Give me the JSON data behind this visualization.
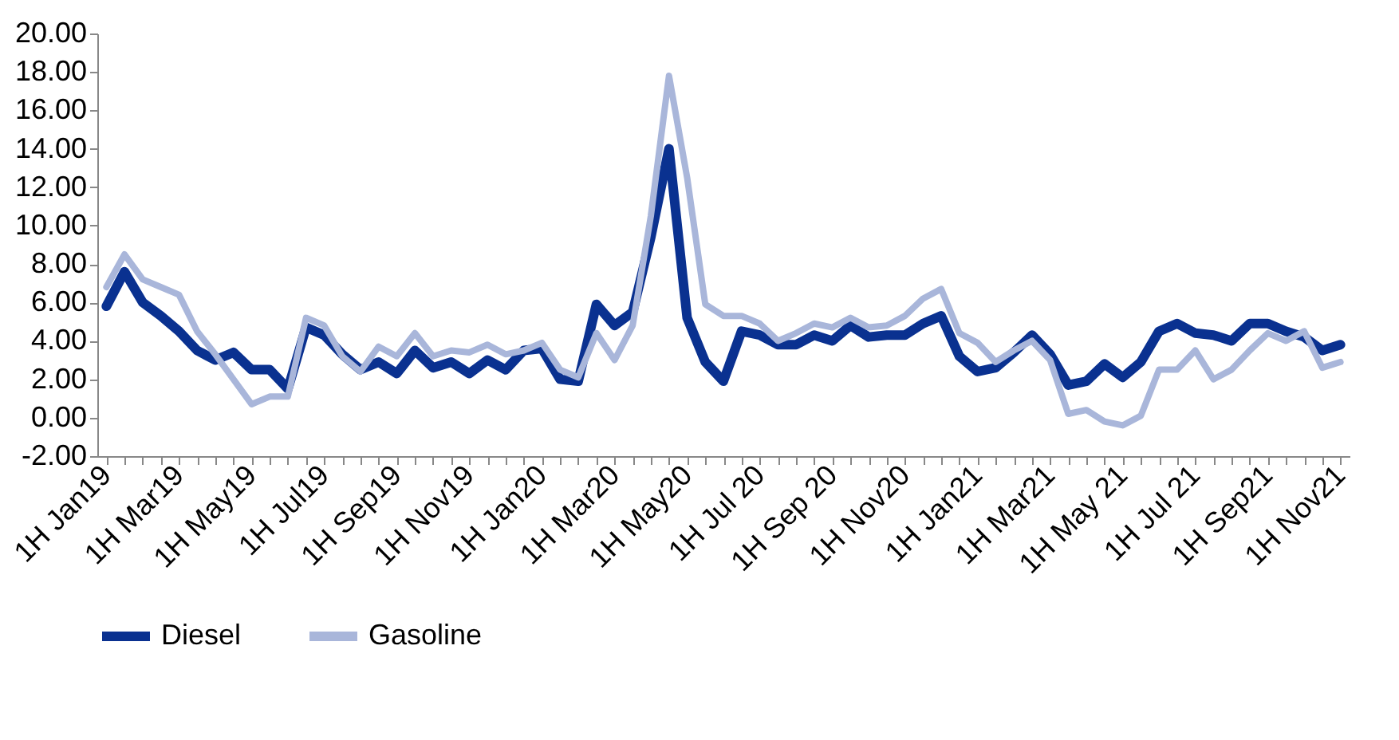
{
  "chart_data": {
    "type": "line",
    "categories": [
      "1H Jan19",
      null,
      null,
      null,
      "1H Mar19",
      null,
      null,
      null,
      "1H May19",
      null,
      null,
      null,
      "1H Jul19",
      null,
      null,
      null,
      "1H Sep19",
      null,
      null,
      null,
      "1H Nov19",
      null,
      null,
      null,
      "1H Jan20",
      null,
      null,
      null,
      "1H Mar20",
      null,
      null,
      null,
      "1H May20",
      null,
      null,
      null,
      "1H Jul 20",
      null,
      null,
      null,
      "1H Sep 20",
      null,
      null,
      null,
      "1H Nov20",
      null,
      null,
      null,
      "1H Jan21",
      null,
      null,
      null,
      "1H Mar21",
      null,
      null,
      null,
      "1H May 21",
      null,
      null,
      null,
      "1H Jul 21",
      null,
      null,
      null,
      "1H Sep21",
      null,
      null,
      null,
      "1H Nov21"
    ],
    "series": [
      {
        "name": "Diesel",
        "color": "#0a3190",
        "values": [
          5.8,
          7.6,
          6.0,
          5.3,
          4.5,
          3.5,
          3.0,
          3.4,
          2.5,
          2.5,
          1.5,
          4.7,
          4.3,
          3.3,
          2.5,
          2.9,
          2.3,
          3.5,
          2.6,
          2.9,
          2.3,
          3.0,
          2.5,
          3.5,
          3.6,
          2.0,
          1.9,
          5.9,
          4.8,
          5.5,
          9.4,
          14.0,
          5.2,
          2.9,
          1.9,
          4.5,
          4.3,
          3.8,
          3.8,
          4.3,
          4.0,
          4.8,
          4.2,
          4.3,
          4.3,
          4.9,
          5.3,
          3.2,
          2.4,
          2.6,
          3.4,
          4.3,
          3.3,
          1.7,
          1.9,
          2.8,
          2.1,
          2.9,
          4.5,
          4.9,
          4.4,
          4.3,
          4.0,
          4.9,
          4.9,
          4.5,
          4.2,
          3.5,
          3.8
        ]
      },
      {
        "name": "Gasoline",
        "color": "#a9b6da",
        "values": [
          6.8,
          8.5,
          7.2,
          6.8,
          6.4,
          4.5,
          3.3,
          2.0,
          0.7,
          1.1,
          1.1,
          5.2,
          4.8,
          3.2,
          2.4,
          3.7,
          3.2,
          4.4,
          3.2,
          3.5,
          3.4,
          3.8,
          3.3,
          3.5,
          3.9,
          2.5,
          2.1,
          4.4,
          3.0,
          4.8,
          10.5,
          17.8,
          12.5,
          5.9,
          5.3,
          5.3,
          4.9,
          4.0,
          4.4,
          4.9,
          4.7,
          5.2,
          4.7,
          4.8,
          5.3,
          6.2,
          6.7,
          4.4,
          3.9,
          2.9,
          3.5,
          4.0,
          3.0,
          0.2,
          0.4,
          -0.2,
          -0.4,
          0.1,
          2.5,
          2.5,
          3.5,
          2.0,
          2.5,
          3.5,
          4.4,
          4.0,
          4.5,
          2.6,
          2.9
        ]
      }
    ],
    "ylim": [
      -2,
      20
    ],
    "yticks": [
      {
        "value": -2,
        "label": "-2.00"
      },
      {
        "value": 0,
        "label": "0.00"
      },
      {
        "value": 2,
        "label": "2.00"
      },
      {
        "value": 4,
        "label": "4.00"
      },
      {
        "value": 6,
        "label": "6.00"
      },
      {
        "value": 8,
        "label": "8.00"
      },
      {
        "value": 10,
        "label": "10.00"
      },
      {
        "value": 12,
        "label": "12.00"
      },
      {
        "value": 14,
        "label": "14.00"
      },
      {
        "value": 16,
        "label": "16.00"
      },
      {
        "value": 18,
        "label": "18.00"
      },
      {
        "value": 20,
        "label": "20.00"
      }
    ],
    "grid": false,
    "legend": "bottom",
    "marker": "none",
    "line_style": "solid"
  }
}
